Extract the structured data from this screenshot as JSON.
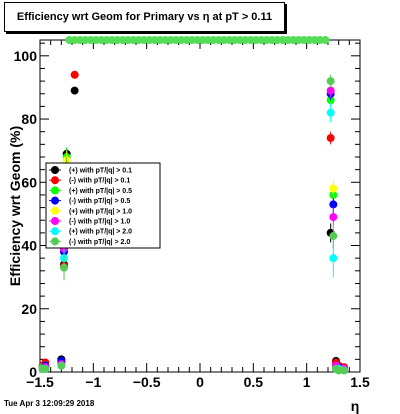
{
  "title": "Efficiency wrt Geom for Primary vs   η at pT > 0.11",
  "timestamp": "Tue Apr  3 12:09:29 2018",
  "chart_data": {
    "type": "scatter",
    "title": "Efficiency wrt Geom for Primary vs   η at pT > 0.11",
    "xlabel": "η",
    "ylabel": "Efficiency wrt Geom (%)",
    "xlim": [
      -1.5,
      1.5
    ],
    "ylim": [
      0,
      105
    ],
    "x_ticks": [
      -1.5,
      -1,
      -0.5,
      0,
      0.5,
      1,
      1.5
    ],
    "x_tick_labels": [
      "−1.5",
      "−1",
      "−0.5",
      "0",
      "0.5",
      "1",
      "1.5"
    ],
    "y_ticks": [
      0,
      20,
      40,
      60,
      80,
      100
    ],
    "y_tick_labels": [
      "0",
      "20",
      "40",
      "60",
      "80",
      "100"
    ],
    "grid": false,
    "legend_position": "left-middle",
    "series": [
      {
        "name": "(+) with pT/|q| > 0.1",
        "color": "#000000",
        "points": [
          [
            -1.475,
            1.5,
            0
          ],
          [
            -1.45,
            2,
            0
          ],
          [
            -1.3,
            4,
            0
          ],
          [
            -1.275,
            34,
            2
          ],
          [
            -1.25,
            69,
            2
          ],
          [
            -1.175,
            89,
            1
          ],
          [
            1.225,
            44,
            3
          ],
          [
            1.275,
            3.5,
            0
          ],
          [
            1.3,
            2,
            0
          ],
          [
            1.35,
            1.5,
            0
          ]
        ]
      },
      {
        "name": "(-) with pT/|q| > 0.1",
        "color": "#ff0000",
        "points": [
          [
            -1.475,
            2,
            0
          ],
          [
            -1.45,
            3,
            0
          ],
          [
            -1.3,
            3,
            0
          ],
          [
            -1.275,
            33.5,
            2
          ],
          [
            -1.25,
            59,
            3
          ],
          [
            -1.175,
            94,
            1
          ],
          [
            1.225,
            74,
            2
          ],
          [
            1.275,
            3,
            0
          ],
          [
            1.3,
            2,
            0
          ],
          [
            1.35,
            1.5,
            0
          ]
        ]
      },
      {
        "name": "(+) with pT/|q| > 0.5",
        "color": "#00ff00",
        "points": [
          [
            -1.475,
            1.5,
            0
          ],
          [
            -1.45,
            2,
            0
          ],
          [
            -1.3,
            3,
            0
          ],
          [
            -1.275,
            39,
            3
          ],
          [
            -1.25,
            68,
            3
          ],
          [
            1.225,
            86,
            2
          ],
          [
            1.25,
            56,
            3
          ],
          [
            1.275,
            2,
            0
          ],
          [
            1.3,
            1.5,
            0
          ],
          [
            1.35,
            1,
            0
          ]
        ]
      },
      {
        "name": "(-) with pT/|q| > 0.5",
        "color": "#0000ff",
        "points": [
          [
            -1.475,
            1,
            0
          ],
          [
            -1.45,
            2,
            0
          ],
          [
            -1.3,
            3.5,
            0
          ],
          [
            -1.275,
            38,
            3
          ],
          [
            -1.25,
            57,
            3
          ],
          [
            1.225,
            88,
            2
          ],
          [
            1.25,
            53,
            3
          ],
          [
            1.275,
            2,
            0
          ],
          [
            1.3,
            1.5,
            0
          ],
          [
            1.35,
            1,
            0
          ]
        ]
      },
      {
        "name": "(+) with pT/|q| > 1.0",
        "color": "#ffff00",
        "points": [
          [
            -1.475,
            1,
            0
          ],
          [
            -1.45,
            1.5,
            0
          ],
          [
            -1.3,
            2,
            0
          ],
          [
            -1.275,
            40,
            3
          ],
          [
            -1.25,
            67,
            3
          ],
          [
            1.225,
            89,
            2
          ],
          [
            1.25,
            58,
            3
          ],
          [
            1.275,
            1.5,
            0
          ],
          [
            1.3,
            1,
            0
          ],
          [
            1.35,
            1,
            0
          ]
        ]
      },
      {
        "name": "(-) with pT/|q| > 1.0",
        "color": "#ff00ff",
        "points": [
          [
            -1.475,
            1,
            0
          ],
          [
            -1.45,
            1.5,
            0
          ],
          [
            -1.3,
            2.5,
            0
          ],
          [
            -1.275,
            39,
            3
          ],
          [
            -1.25,
            64,
            3
          ],
          [
            1.225,
            89,
            2
          ],
          [
            1.25,
            49,
            3
          ],
          [
            1.275,
            2,
            0
          ],
          [
            1.3,
            1,
            0
          ],
          [
            1.35,
            1,
            0
          ]
        ]
      },
      {
        "name": "(+) with pT/|q| > 2.0",
        "color": "#00ffff",
        "points": [
          [
            -1.475,
            1,
            0
          ],
          [
            -1.45,
            1,
            0
          ],
          [
            -1.3,
            2,
            0
          ],
          [
            -1.275,
            36,
            5
          ],
          [
            -1.25,
            60,
            5
          ],
          [
            1.225,
            82,
            3
          ],
          [
            1.25,
            36,
            6
          ],
          [
            1.275,
            1,
            0
          ],
          [
            1.3,
            1,
            0
          ],
          [
            1.35,
            0.5,
            0
          ]
        ]
      },
      {
        "name": "(-) with pT/|q| > 2.0",
        "color": "#55cc55",
        "points": [
          [
            -1.475,
            1,
            0
          ],
          [
            -1.45,
            1,
            0
          ],
          [
            -1.3,
            2,
            0
          ],
          [
            -1.275,
            33,
            4
          ],
          [
            -1.25,
            64,
            4
          ],
          [
            1.225,
            92,
            2
          ],
          [
            1.25,
            43,
            4
          ],
          [
            1.275,
            1,
            0
          ],
          [
            1.3,
            0.5,
            0
          ],
          [
            1.35,
            0.5,
            0
          ]
        ]
      },
      {
        "name": "",
        "color": "#55dd55",
        "points": [
          [
            -1.225,
            105,
            0
          ],
          [
            -1.175,
            105,
            0
          ],
          [
            -1.125,
            105,
            0
          ],
          [
            -1.075,
            105,
            0
          ],
          [
            -1.025,
            105,
            0
          ],
          [
            -0.975,
            105,
            0
          ],
          [
            -0.925,
            105,
            0
          ],
          [
            -0.875,
            105,
            0
          ],
          [
            -0.825,
            105,
            0
          ],
          [
            -0.775,
            105,
            0
          ],
          [
            -0.725,
            105,
            0
          ],
          [
            -0.675,
            105,
            0
          ],
          [
            -0.625,
            105,
            0
          ],
          [
            -0.575,
            105,
            0
          ],
          [
            -0.525,
            105,
            0
          ],
          [
            -0.475,
            105,
            0
          ],
          [
            -0.425,
            105,
            0
          ],
          [
            -0.375,
            105,
            0
          ],
          [
            -0.325,
            105,
            0
          ],
          [
            -0.275,
            105,
            0
          ],
          [
            -0.225,
            105,
            0
          ],
          [
            -0.175,
            105,
            0
          ],
          [
            -0.125,
            105,
            0
          ],
          [
            -0.075,
            105,
            0
          ],
          [
            -0.025,
            105,
            0
          ],
          [
            0.025,
            105,
            0
          ],
          [
            0.075,
            105,
            0
          ],
          [
            0.125,
            105,
            0
          ],
          [
            0.175,
            105,
            0
          ],
          [
            0.225,
            105,
            0
          ],
          [
            0.275,
            105,
            0
          ],
          [
            0.325,
            105,
            0
          ],
          [
            0.375,
            105,
            0
          ],
          [
            0.425,
            105,
            0
          ],
          [
            0.475,
            105,
            0
          ],
          [
            0.525,
            105,
            0
          ],
          [
            0.575,
            105,
            0
          ],
          [
            0.625,
            105,
            0
          ],
          [
            0.675,
            105,
            0
          ],
          [
            0.725,
            105,
            0
          ],
          [
            0.775,
            105,
            0
          ],
          [
            0.825,
            105,
            0
          ],
          [
            0.875,
            105,
            0
          ],
          [
            0.925,
            105,
            0
          ],
          [
            0.975,
            105,
            0
          ],
          [
            1.025,
            105,
            0
          ],
          [
            1.075,
            105,
            0
          ],
          [
            1.125,
            105,
            0
          ],
          [
            1.175,
            105,
            0
          ]
        ]
      }
    ]
  }
}
